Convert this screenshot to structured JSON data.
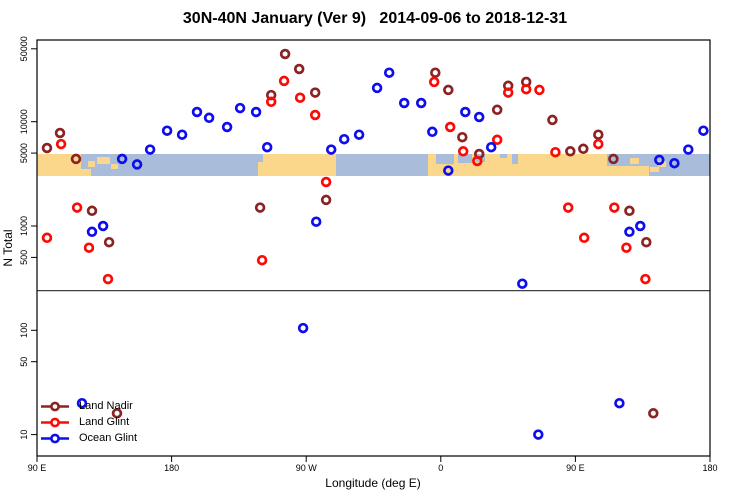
{
  "title": "30N-40N January (Ver 9)   2014-09-06 to 2018-12-31",
  "chart_data": {
    "type": "scatter",
    "title": "30N-40N January (Ver 9)   2014-09-06 to 2018-12-31",
    "xlabel": "Longitude (deg E)",
    "ylabel": "N Total",
    "x_axis": {
      "min": 90,
      "max": 540,
      "note": "longitude in deg E, wrapping eastward 90E -> 180 -> 90W -> 0 -> 90E -> 180",
      "ticks": [
        {
          "value": 90,
          "label": "90 E"
        },
        {
          "value": 180,
          "label": "180"
        },
        {
          "value": 270,
          "label": "90 W"
        },
        {
          "value": 360,
          "label": "0"
        },
        {
          "value": 450,
          "label": "90 E"
        },
        {
          "value": 540,
          "label": "180"
        }
      ]
    },
    "y_axis": {
      "scale": "log10",
      "min": 8,
      "max": 60000,
      "ticks": [
        50000,
        10000,
        5000,
        1000,
        500,
        100,
        50,
        10
      ]
    },
    "threshold_line_n": 240,
    "grid": false,
    "legend_position": "bottom-left",
    "map_band": {
      "lat_range": "30N-40N",
      "ocean_color": "#A9BCD9",
      "land_color": "#FAD78A"
    },
    "series": [
      {
        "name": "Land Nadir",
        "color": "#8B2323",
        "points": [
          [
            96.7,
            5600
          ],
          [
            105.4,
            7800
          ],
          [
            116.1,
            4400
          ],
          [
            126.8,
            1400
          ],
          [
            138.2,
            700
          ],
          [
            143.5,
            16
          ],
          [
            239.2,
            1500
          ],
          [
            246.6,
            18000
          ],
          [
            255.9,
            44600
          ],
          [
            265.3,
            32000
          ],
          [
            276,
            19000
          ],
          [
            283.3,
            1780
          ],
          [
            356.3,
            29500
          ],
          [
            365,
            20200
          ],
          [
            374.4,
            7100
          ],
          [
            385.7,
            4900
          ],
          [
            397.7,
            13000
          ],
          [
            405.1,
            22100
          ],
          [
            417.1,
            24100
          ],
          [
            434.6,
            10400
          ],
          [
            446.6,
            5200
          ],
          [
            455.3,
            5500
          ],
          [
            465.3,
            7500
          ],
          [
            475.4,
            4400
          ],
          [
            486.1,
            1400
          ],
          [
            497.4,
            700
          ],
          [
            502.1,
            16
          ]
        ]
      },
      {
        "name": "Land Glint",
        "color": "#FB0A06",
        "points": [
          [
            96.7,
            770
          ],
          [
            106.1,
            6100
          ],
          [
            116.8,
            1500
          ],
          [
            124.8,
            620
          ],
          [
            137.5,
            310
          ],
          [
            240.5,
            470
          ],
          [
            246.6,
            15500
          ],
          [
            255.2,
            24600
          ],
          [
            265.9,
            17000
          ],
          [
            276,
            11600
          ],
          [
            283.3,
            2640
          ],
          [
            355.6,
            24100
          ],
          [
            366.3,
            8900
          ],
          [
            375,
            5200
          ],
          [
            384.4,
            4200
          ],
          [
            397.7,
            6700
          ],
          [
            405.1,
            19000
          ],
          [
            417.1,
            20500
          ],
          [
            425.9,
            20200
          ],
          [
            436.6,
            5100
          ],
          [
            445.2,
            1500
          ],
          [
            455.9,
            770
          ],
          [
            465.3,
            6100
          ],
          [
            476,
            1500
          ],
          [
            484.1,
            620
          ],
          [
            496.8,
            310
          ]
        ]
      },
      {
        "name": "Ocean Glint",
        "color": "#0D0DEE",
        "points": [
          [
            120.1,
            20
          ],
          [
            126.8,
            880
          ],
          [
            134.2,
            1000
          ],
          [
            146.9,
            4400
          ],
          [
            156.9,
            3900
          ],
          [
            165.6,
            5400
          ],
          [
            177,
            8200
          ],
          [
            187,
            7500
          ],
          [
            197,
            12400
          ],
          [
            205.1,
            10900
          ],
          [
            217.1,
            8900
          ],
          [
            225.8,
            13500
          ],
          [
            236.5,
            12400
          ],
          [
            243.9,
            5700
          ],
          [
            267.9,
            105
          ],
          [
            276.7,
            1100
          ],
          [
            286.7,
            5400
          ],
          [
            295.4,
            6800
          ],
          [
            305.4,
            7500
          ],
          [
            317.4,
            21100
          ],
          [
            325.5,
            29500
          ],
          [
            335.5,
            15100
          ],
          [
            346.9,
            15100
          ],
          [
            354.3,
            8000
          ],
          [
            365,
            3400
          ],
          [
            376.4,
            12400
          ],
          [
            385.7,
            11100
          ],
          [
            393.7,
            5700
          ],
          [
            414.5,
            280
          ],
          [
            425.2,
            10
          ],
          [
            479.4,
            20
          ],
          [
            486.1,
            880
          ],
          [
            493.4,
            1000
          ],
          [
            506.1,
            4300
          ],
          [
            516.2,
            4000
          ],
          [
            525.5,
            5400
          ],
          [
            535.6,
            8200
          ]
        ]
      }
    ]
  },
  "legend": {
    "items": [
      {
        "label": "Land Nadir",
        "color": "#8B2323"
      },
      {
        "label": "Land Glint",
        "color": "#FB0A06"
      },
      {
        "label": "Ocean Glint",
        "color": "#0D0DEE"
      }
    ]
  }
}
